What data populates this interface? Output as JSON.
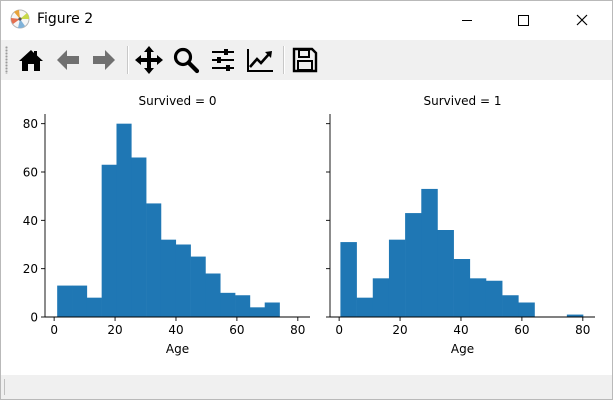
{
  "window": {
    "title": "Figure 2"
  },
  "toolbar": {
    "buttons": [
      {
        "name": "home-icon"
      },
      {
        "name": "back-arrow-icon"
      },
      {
        "name": "forward-arrow-icon"
      },
      {
        "name": "pan-icon"
      },
      {
        "name": "zoom-icon"
      },
      {
        "name": "configure-subplots-icon"
      },
      {
        "name": "edit-axis-icon"
      },
      {
        "name": "save-icon"
      }
    ]
  },
  "colors": {
    "bar": "#1f77b4",
    "toolbar_bg": "#f0f0f0"
  },
  "chart_data": [
    {
      "type": "bar",
      "title": "Survived = 0",
      "xlabel": "Age",
      "ylabel": "",
      "xlim": [
        -3,
        84
      ],
      "ylim": [
        0,
        84
      ],
      "xticks": [
        "0",
        "20",
        "40",
        "60",
        "80"
      ],
      "yticks": [
        "0",
        "20",
        "40",
        "60",
        "80"
      ],
      "bin_edges": [
        1,
        5.87,
        10.73,
        15.6,
        20.47,
        25.33,
        30.2,
        35.07,
        39.93,
        44.8,
        49.67,
        54.53,
        59.4,
        64.27,
        69.13,
        74
      ],
      "values": [
        13,
        13,
        8,
        63,
        80,
        66,
        47,
        32,
        30,
        25,
        18,
        10,
        9,
        4,
        6
      ]
    },
    {
      "type": "bar",
      "title": "Survived = 1",
      "xlabel": "Age",
      "ylabel": "",
      "xlim": [
        -3,
        84
      ],
      "ylim": [
        0,
        84
      ],
      "xticks": [
        "0",
        "20",
        "40",
        "60",
        "80"
      ],
      "yticks": [],
      "bin_edges": [
        0.42,
        5.73,
        11.04,
        16.35,
        21.66,
        26.97,
        32.28,
        37.59,
        42.9,
        48.21,
        53.52,
        58.83,
        64.14,
        69.45,
        74.76,
        80.07
      ],
      "values": [
        31,
        8,
        16,
        32,
        43,
        53,
        36,
        24,
        16,
        15,
        9,
        6,
        0,
        0,
        1
      ]
    }
  ]
}
